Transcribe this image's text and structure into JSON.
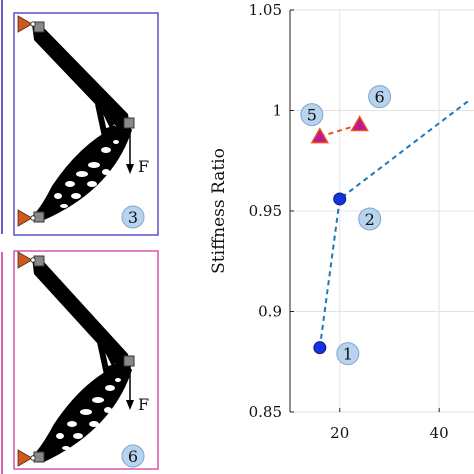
{
  "colors": {
    "panel_top_border": "#6a5acd",
    "panel_bottom_border": "#d860b0",
    "support": "#cc5a1e",
    "curve_blue": "#1f77b4",
    "marker_blue": "#1432e0",
    "curve_orange": "#e8551a",
    "marker_triangle": "#c01890",
    "badge_fill": "#b7d3ee"
  },
  "panels": {
    "top": {
      "badge": "3",
      "force_label": "F"
    },
    "bottom": {
      "badge": "6",
      "force_label": "F"
    }
  },
  "chart_data": {
    "type": "scatter",
    "ylabel": "Stiffness Ratio",
    "xlabel": "",
    "xlim": [
      10,
      47
    ],
    "ylim": [
      0.85,
      1.05
    ],
    "x_ticks": [
      20,
      40
    ],
    "y_ticks": [
      0.85,
      0.9,
      0.95,
      1,
      1.05
    ],
    "y_tick_labels": [
      "0.85",
      "0.9",
      "0.95",
      "1",
      "1.05"
    ],
    "grid": true,
    "series": [
      {
        "marker": "circle",
        "line": "dashed",
        "points": [
          {
            "x": 16,
            "y": 0.882,
            "label": "1"
          },
          {
            "x": 20,
            "y": 0.956,
            "label": "2"
          },
          {
            "x": 46,
            "y": 1.005,
            "label": ""
          }
        ]
      },
      {
        "marker": "triangle",
        "line": "dashed",
        "points": [
          {
            "x": 16,
            "y": 0.987,
            "label": "5"
          },
          {
            "x": 24,
            "y": 0.993,
            "label": "6"
          }
        ]
      }
    ]
  }
}
